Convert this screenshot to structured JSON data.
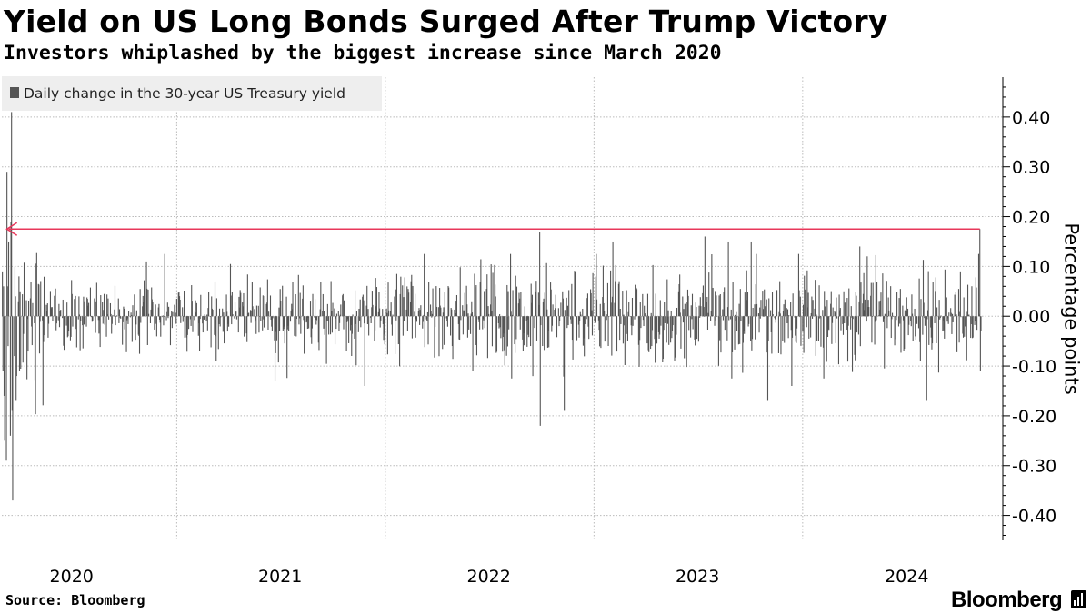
{
  "header": {
    "title": "Yield on US Long Bonds Surged After Trump Victory",
    "subtitle": "Investors whiplashed by the biggest increase since March 2020"
  },
  "footer": {
    "source": "Source: Bloomberg",
    "brand": "Bloomberg",
    "brand_icon": "bloomberg-terminal-icon"
  },
  "colors": {
    "bars": "#555555",
    "arrow": "#e8375a",
    "legend_bg": "#eeeeee",
    "grid": "#bbbbbb"
  },
  "chart_data": {
    "type": "bar",
    "legend": {
      "entries": [
        "Daily change in the 30-year US Treasury yield"
      ],
      "placement": "top-left"
    },
    "ylabel": "Percentage points",
    "ylim": [
      -0.45,
      0.48
    ],
    "yticks": [
      0.4,
      0.3,
      0.2,
      0.1,
      0.0,
      -0.1,
      -0.2,
      -0.3,
      -0.4
    ],
    "ytick_labels": [
      "0.40",
      "0.30",
      "0.20",
      "0.10",
      "0.00",
      "-0.10",
      "-0.20",
      "-0.30",
      "-0.40"
    ],
    "y_axis_side": "right",
    "grid": true,
    "xlim": [
      "2020-03-01",
      "2024-11-08"
    ],
    "xtick_labels": [
      {
        "label": "2020",
        "date": "2020-07-01"
      },
      {
        "label": "2021",
        "date": "2021-07-01"
      },
      {
        "label": "2022",
        "date": "2022-07-01"
      },
      {
        "label": "2023",
        "date": "2023-07-01"
      },
      {
        "label": "2024",
        "date": "2024-07-01"
      }
    ],
    "x_gridlines": [
      "2021-01-01",
      "2022-01-01",
      "2023-01-01",
      "2024-01-01"
    ],
    "annotation": {
      "type": "arrow",
      "y": 0.175,
      "from": "2024-11-06",
      "to": "2020-03-10"
    },
    "series": [
      {
        "name": "Daily change in the 30-year US Treasury yield",
        "points": [
          [
            "2020-03-02",
            0.09
          ],
          [
            "2020-03-03",
            -0.11
          ],
          [
            "2020-03-04",
            0.06
          ],
          [
            "2020-03-05",
            -0.16
          ],
          [
            "2020-03-06",
            -0.25
          ],
          [
            "2020-03-09",
            -0.29
          ],
          [
            "2020-03-10",
            0.29
          ],
          [
            "2020-03-11",
            0.06
          ],
          [
            "2020-03-12",
            -0.06
          ],
          [
            "2020-03-13",
            0.15
          ],
          [
            "2020-03-16",
            -0.24
          ],
          [
            "2020-03-17",
            0.19
          ],
          [
            "2020-03-18",
            0.41
          ],
          [
            "2020-03-19",
            -0.19
          ],
          [
            "2020-03-20",
            -0.37
          ],
          [
            "2020-03-23",
            -0.08
          ],
          [
            "2020-03-24",
            0.1
          ],
          [
            "2020-03-25",
            0.04
          ],
          [
            "2020-03-26",
            -0.17
          ],
          [
            "2020-03-27",
            -0.12
          ],
          [
            "2020-03-30",
            0.03
          ],
          [
            "2020-03-31",
            0.08
          ],
          [
            "2020-04-01",
            -0.11
          ],
          [
            "2020-04-02",
            0.05
          ],
          [
            "2020-11-09",
            0.11
          ],
          [
            "2021-03-11",
            -0.09
          ],
          [
            "2021-06-22",
            -0.13
          ],
          [
            "2021-11-26",
            -0.14
          ],
          [
            "2022-09-28",
            0.17
          ],
          [
            "2022-09-29",
            -0.22
          ],
          [
            "2022-11-10",
            -0.19
          ],
          [
            "2023-02-03",
            0.15
          ],
          [
            "2023-07-14",
            0.16
          ],
          [
            "2023-08-24",
            0.15
          ],
          [
            "2023-10-03",
            0.15
          ],
          [
            "2023-11-01",
            -0.17
          ],
          [
            "2023-12-13",
            -0.14
          ],
          [
            "2024-04-10",
            0.14
          ],
          [
            "2024-08-05",
            -0.17
          ],
          [
            "2024-10-03",
            0.09
          ],
          [
            "2024-11-06",
            0.175
          ],
          [
            "2024-11-07",
            -0.11
          ],
          [
            "2024-11-08",
            -0.03
          ]
        ],
        "rest": "about 1,150 further trading-day bars between the listed points, mostly within ±0.10"
      }
    ]
  }
}
